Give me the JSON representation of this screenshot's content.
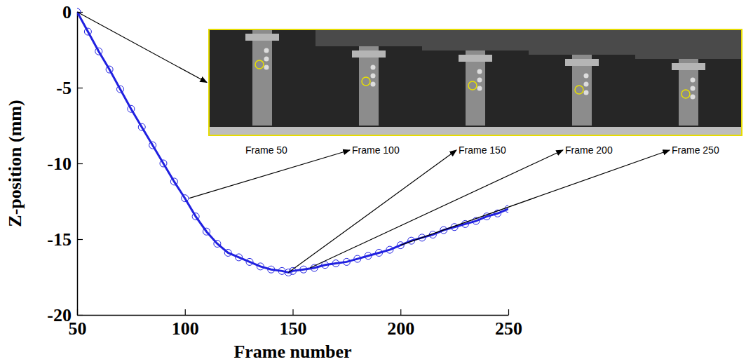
{
  "chart_data": {
    "type": "line",
    "x_label": "Frame number",
    "y_label": "Z-position (mm)",
    "x": [
      50,
      55,
      60,
      65,
      70,
      75,
      80,
      85,
      90,
      95,
      100,
      105,
      110,
      115,
      120,
      125,
      130,
      135,
      140,
      145,
      148,
      150,
      155,
      160,
      165,
      170,
      175,
      180,
      185,
      190,
      195,
      200,
      205,
      210,
      215,
      220,
      225,
      230,
      235,
      240,
      245,
      250
    ],
    "values": [
      0,
      -1.3,
      -2.6,
      -3.8,
      -5.1,
      -6.4,
      -7.6,
      -8.8,
      -10,
      -11.2,
      -12.3,
      -13.5,
      -14.5,
      -15.3,
      -15.9,
      -16.2,
      -16.5,
      -16.8,
      -17,
      -17.1,
      -17.2,
      -17.1,
      -17,
      -16.9,
      -16.7,
      -16.6,
      -16.5,
      -16.3,
      -16.1,
      -15.9,
      -15.7,
      -15.4,
      -15.1,
      -14.9,
      -14.7,
      -14.4,
      -14.2,
      -14,
      -13.8,
      -13.5,
      -13.3,
      -13
    ],
    "color": "#2020e0",
    "marker": "circle",
    "line_style": "solid",
    "xlim": [
      50,
      250
    ],
    "ylim": [
      -20,
      0
    ],
    "xticks": [
      50,
      100,
      150,
      200,
      250
    ],
    "yticks": [
      -20,
      -15,
      -10,
      -5,
      0
    ],
    "annotations": [
      {
        "text": "Frame 50",
        "x": 50,
        "y": 0
      },
      {
        "text": "Frame 100",
        "x": 102,
        "y": -12.3
      },
      {
        "text": "Frame 150",
        "x": 148,
        "y": -17.2
      },
      {
        "text": "Frame 200",
        "x": 158,
        "y": -16.9
      },
      {
        "text": "Frame 250",
        "x": 200,
        "y": -15.4
      }
    ]
  }
}
